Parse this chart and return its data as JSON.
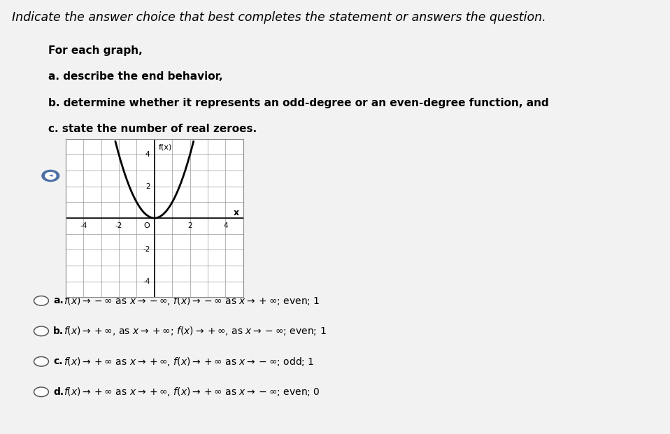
{
  "title_line1": "Indicate the answer choice that best completes the statement or answers the question.",
  "subtitle": "For each graph,",
  "instructions": [
    "a. describe the end behavior,",
    "b. determine whether it represents an odd-degree or an even-degree function, and",
    "c. state the number of real zeroes."
  ],
  "graph_xlim": [
    -5,
    5
  ],
  "graph_ylim": [
    -5,
    5
  ],
  "curve_color": "#000000",
  "bg_color": "#f2f2f2",
  "left_bar_color": "#3a3a7a",
  "graph_box_color": "#d0d0d0",
  "choice_a": "f(x) \\u2192 \\u2212\\u221e as x \\u2192 \\u2212\\u221e,  f(x) \\u2192 \\u2212\\u221e as x \\u2192 +\\u221e; even; 1",
  "choice_b": "f(x) \\u2192 +\\u221e, as x \\u2192 +\\u221e; f(x) \\u2192 +\\u221e, as x \\u2192 \\u2212\\u221e; even; 1",
  "choice_c": "f(x) \\u2192 +\\u221e as x \\u2192 +\\u221e,  f(x) \\u2192 +\\u221e as x \\u2192 \\u2212\\u221e; odd; 1",
  "choice_d": "f(x) \\u2192 +\\u221e as x \\u2192 +\\u221e,  f(x) \\u2192 +\\u221e as x \\u2192 \\u2212\\u221e; even; 0"
}
